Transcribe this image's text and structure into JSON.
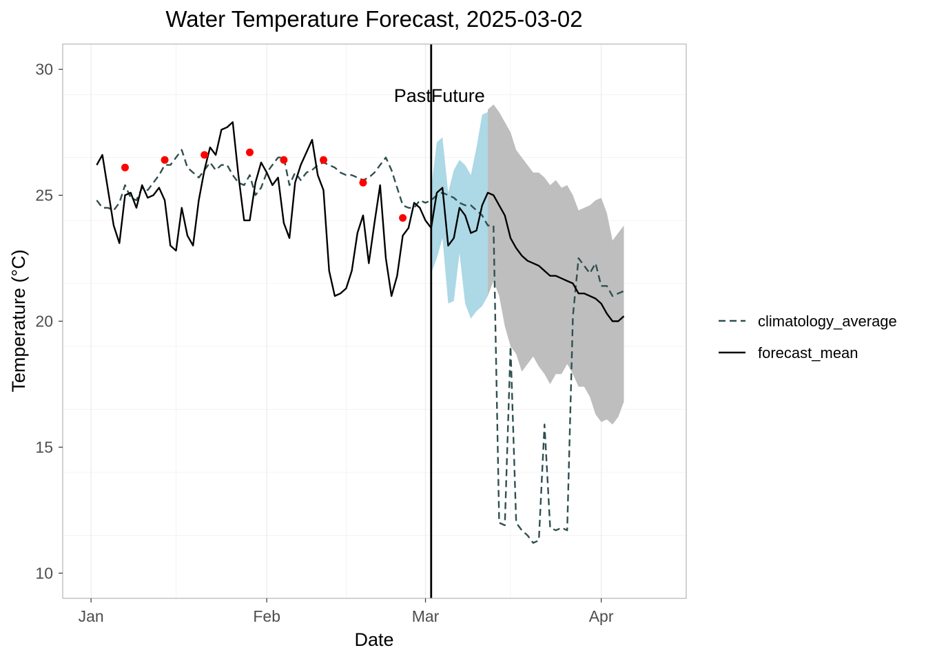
{
  "chart_data": {
    "type": "line",
    "title": "Water Temperature Forecast, 2025-03-02",
    "xlabel": "Date",
    "ylabel": "Temperature (°C)",
    "x_ticks": [
      "Jan",
      "Feb",
      "Mar",
      "Apr"
    ],
    "x_tick_dates": [
      "2025-01-01",
      "2025-02-01",
      "2025-03-01",
      "2025-04-01"
    ],
    "y_ticks": [
      10,
      15,
      20,
      25,
      30
    ],
    "xlim": [
      "2024-12-27",
      "2025-04-16"
    ],
    "ylim": [
      9,
      31
    ],
    "grid": true,
    "legend_position": "right",
    "reference_line": {
      "x": "2025-03-02",
      "labels": [
        "Past",
        "Future"
      ]
    },
    "colors": {
      "forecast_mean": "#000000",
      "climatology_average": "#2f4f4f",
      "observations": "#ff0000",
      "past_band": "#add8e6",
      "future_band": "#bebebe",
      "grid": "#ebebeb",
      "panel_border": "#b3b3b3"
    },
    "series": [
      {
        "name": "forecast_mean",
        "style": "solid",
        "points": [
          [
            "2025-01-02",
            26.2
          ],
          [
            "2025-01-03",
            26.6
          ],
          [
            "2025-01-04",
            25.2
          ],
          [
            "2025-01-05",
            23.8
          ],
          [
            "2025-01-06",
            23.1
          ],
          [
            "2025-01-07",
            25.0
          ],
          [
            "2025-01-08",
            25.1
          ],
          [
            "2025-01-09",
            24.5
          ],
          [
            "2025-01-10",
            25.4
          ],
          [
            "2025-01-11",
            24.9
          ],
          [
            "2025-01-12",
            25.0
          ],
          [
            "2025-01-13",
            25.3
          ],
          [
            "2025-01-14",
            24.8
          ],
          [
            "2025-01-15",
            23.0
          ],
          [
            "2025-01-16",
            22.8
          ],
          [
            "2025-01-17",
            24.5
          ],
          [
            "2025-01-18",
            23.4
          ],
          [
            "2025-01-19",
            23.0
          ],
          [
            "2025-01-20",
            24.8
          ],
          [
            "2025-01-21",
            26.0
          ],
          [
            "2025-01-22",
            26.9
          ],
          [
            "2025-01-23",
            26.6
          ],
          [
            "2025-01-24",
            27.6
          ],
          [
            "2025-01-25",
            27.7
          ],
          [
            "2025-01-26",
            27.9
          ],
          [
            "2025-01-27",
            25.8
          ],
          [
            "2025-01-28",
            24.0
          ],
          [
            "2025-01-29",
            24.0
          ],
          [
            "2025-01-30",
            25.5
          ],
          [
            "2025-01-31",
            26.3
          ],
          [
            "2025-02-01",
            25.9
          ],
          [
            "2025-02-02",
            25.4
          ],
          [
            "2025-02-03",
            25.7
          ],
          [
            "2025-02-04",
            23.9
          ],
          [
            "2025-02-05",
            23.3
          ],
          [
            "2025-02-06",
            25.5
          ],
          [
            "2025-02-07",
            26.2
          ],
          [
            "2025-02-08",
            26.7
          ],
          [
            "2025-02-09",
            27.2
          ],
          [
            "2025-02-10",
            25.8
          ],
          [
            "2025-02-11",
            25.2
          ],
          [
            "2025-02-12",
            22.0
          ],
          [
            "2025-02-13",
            21.0
          ],
          [
            "2025-02-14",
            21.1
          ],
          [
            "2025-02-15",
            21.3
          ],
          [
            "2025-02-16",
            22.0
          ],
          [
            "2025-02-17",
            23.5
          ],
          [
            "2025-02-18",
            24.2
          ],
          [
            "2025-02-19",
            22.3
          ],
          [
            "2025-02-20",
            23.9
          ],
          [
            "2025-02-21",
            25.4
          ],
          [
            "2025-02-22",
            22.5
          ],
          [
            "2025-02-23",
            21.0
          ],
          [
            "2025-02-24",
            21.8
          ],
          [
            "2025-02-25",
            23.4
          ],
          [
            "2025-02-26",
            23.7
          ],
          [
            "2025-02-27",
            24.7
          ],
          [
            "2025-02-28",
            24.5
          ],
          [
            "2025-03-01",
            24.0
          ],
          [
            "2025-03-02",
            23.7
          ],
          [
            "2025-03-03",
            25.1
          ],
          [
            "2025-03-04",
            25.3
          ],
          [
            "2025-03-05",
            23.0
          ],
          [
            "2025-03-06",
            23.3
          ],
          [
            "2025-03-07",
            24.5
          ],
          [
            "2025-03-08",
            24.2
          ],
          [
            "2025-03-09",
            23.5
          ],
          [
            "2025-03-10",
            23.6
          ],
          [
            "2025-03-11",
            24.6
          ],
          [
            "2025-03-12",
            25.1
          ],
          [
            "2025-03-13",
            25.0
          ],
          [
            "2025-03-14",
            24.6
          ],
          [
            "2025-03-15",
            24.2
          ],
          [
            "2025-03-16",
            23.3
          ],
          [
            "2025-03-17",
            22.9
          ],
          [
            "2025-03-18",
            22.6
          ],
          [
            "2025-03-19",
            22.4
          ],
          [
            "2025-03-20",
            22.3
          ],
          [
            "2025-03-21",
            22.2
          ],
          [
            "2025-03-22",
            22.0
          ],
          [
            "2025-03-23",
            21.8
          ],
          [
            "2025-03-24",
            21.8
          ],
          [
            "2025-03-25",
            21.7
          ],
          [
            "2025-03-26",
            21.6
          ],
          [
            "2025-03-27",
            21.5
          ],
          [
            "2025-03-28",
            21.1
          ],
          [
            "2025-03-29",
            21.1
          ],
          [
            "2025-03-30",
            21.0
          ],
          [
            "2025-03-31",
            20.9
          ],
          [
            "2025-04-01",
            20.7
          ],
          [
            "2025-04-02",
            20.3
          ],
          [
            "2025-04-03",
            20.0
          ],
          [
            "2025-04-04",
            20.0
          ],
          [
            "2025-04-05",
            20.2
          ]
        ]
      },
      {
        "name": "climatology_average",
        "style": "dashed",
        "points": [
          [
            "2025-01-02",
            24.8
          ],
          [
            "2025-01-03",
            24.5
          ],
          [
            "2025-01-04",
            24.5
          ],
          [
            "2025-01-05",
            24.4
          ],
          [
            "2025-01-06",
            24.7
          ],
          [
            "2025-01-07",
            25.4
          ],
          [
            "2025-01-08",
            24.9
          ],
          [
            "2025-01-09",
            24.8
          ],
          [
            "2025-01-10",
            25.3
          ],
          [
            "2025-01-11",
            25.2
          ],
          [
            "2025-01-12",
            25.5
          ],
          [
            "2025-01-13",
            25.8
          ],
          [
            "2025-01-14",
            26.2
          ],
          [
            "2025-01-15",
            26.2
          ],
          [
            "2025-01-16",
            26.5
          ],
          [
            "2025-01-17",
            26.8
          ],
          [
            "2025-01-18",
            26.1
          ],
          [
            "2025-01-19",
            25.9
          ],
          [
            "2025-01-20",
            25.7
          ],
          [
            "2025-01-21",
            26.0
          ],
          [
            "2025-01-22",
            26.3
          ],
          [
            "2025-01-23",
            26.0
          ],
          [
            "2025-01-24",
            26.2
          ],
          [
            "2025-01-25",
            26.2
          ],
          [
            "2025-01-26",
            25.8
          ],
          [
            "2025-01-27",
            25.5
          ],
          [
            "2025-01-28",
            25.4
          ],
          [
            "2025-01-29",
            25.8
          ],
          [
            "2025-01-30",
            25.0
          ],
          [
            "2025-01-31",
            25.3
          ],
          [
            "2025-02-01",
            25.9
          ],
          [
            "2025-02-02",
            26.2
          ],
          [
            "2025-02-03",
            26.5
          ],
          [
            "2025-02-04",
            26.5
          ],
          [
            "2025-02-05",
            25.4
          ],
          [
            "2025-02-06",
            25.9
          ],
          [
            "2025-02-07",
            25.6
          ],
          [
            "2025-02-08",
            25.9
          ],
          [
            "2025-02-09",
            26.0
          ],
          [
            "2025-02-10",
            26.2
          ],
          [
            "2025-02-11",
            26.3
          ],
          [
            "2025-02-12",
            26.2
          ],
          [
            "2025-02-13",
            26.1
          ],
          [
            "2025-02-14",
            25.9
          ],
          [
            "2025-02-15",
            25.8
          ],
          [
            "2025-02-16",
            25.8
          ],
          [
            "2025-02-17",
            25.7
          ],
          [
            "2025-02-18",
            25.6
          ],
          [
            "2025-02-19",
            25.7
          ],
          [
            "2025-02-20",
            25.9
          ],
          [
            "2025-02-21",
            26.2
          ],
          [
            "2025-02-22",
            26.5
          ],
          [
            "2025-02-23",
            26.0
          ],
          [
            "2025-02-24",
            25.3
          ],
          [
            "2025-02-25",
            24.6
          ],
          [
            "2025-02-26",
            24.5
          ],
          [
            "2025-02-27",
            24.5
          ],
          [
            "2025-02-28",
            24.8
          ],
          [
            "2025-03-01",
            24.7
          ],
          [
            "2025-03-02",
            24.8
          ],
          [
            "2025-03-03",
            25.0
          ],
          [
            "2025-03-04",
            25.1
          ],
          [
            "2025-03-05",
            25.0
          ],
          [
            "2025-03-06",
            24.9
          ],
          [
            "2025-03-07",
            24.7
          ],
          [
            "2025-03-08",
            24.6
          ],
          [
            "2025-03-09",
            24.6
          ],
          [
            "2025-03-10",
            24.4
          ],
          [
            "2025-03-11",
            24.2
          ],
          [
            "2025-03-12",
            23.8
          ],
          [
            "2025-03-13",
            23.8
          ],
          [
            "2025-03-14",
            12.0
          ],
          [
            "2025-03-15",
            11.9
          ],
          [
            "2025-03-16",
            19.0
          ],
          [
            "2025-03-17",
            12.0
          ],
          [
            "2025-03-18",
            11.7
          ],
          [
            "2025-03-19",
            11.5
          ],
          [
            "2025-03-20",
            11.2
          ],
          [
            "2025-03-21",
            11.3
          ],
          [
            "2025-03-22",
            15.9
          ],
          [
            "2025-03-23",
            11.8
          ],
          [
            "2025-03-24",
            11.7
          ],
          [
            "2025-03-25",
            11.8
          ],
          [
            "2025-03-26",
            11.7
          ],
          [
            "2025-03-27",
            20.2
          ],
          [
            "2025-03-28",
            22.5
          ],
          [
            "2025-03-29",
            22.2
          ],
          [
            "2025-03-30",
            21.9
          ],
          [
            "2025-03-31",
            22.3
          ],
          [
            "2025-04-01",
            21.4
          ],
          [
            "2025-04-02",
            21.4
          ],
          [
            "2025-04-03",
            21.0
          ],
          [
            "2025-04-04",
            21.1
          ],
          [
            "2025-04-05",
            21.2
          ]
        ]
      }
    ],
    "observations": [
      [
        "2025-01-07",
        26.1
      ],
      [
        "2025-01-14",
        26.4
      ],
      [
        "2025-01-21",
        26.6
      ],
      [
        "2025-01-29",
        26.7
      ],
      [
        "2025-02-04",
        26.4
      ],
      [
        "2025-02-11",
        26.4
      ],
      [
        "2025-02-18",
        25.5
      ],
      [
        "2025-02-25",
        24.1
      ]
    ],
    "bands": [
      {
        "label": "past",
        "x": [
          "2025-03-02",
          "2025-03-03",
          "2025-03-04",
          "2025-03-05",
          "2025-03-06",
          "2025-03-07",
          "2025-03-08",
          "2025-03-09",
          "2025-03-10",
          "2025-03-11",
          "2025-03-12"
        ],
        "lower": [
          21.9,
          22.5,
          23.3,
          20.7,
          20.8,
          22.7,
          20.7,
          20.1,
          20.4,
          20.6,
          21.0
        ],
        "upper": [
          25.3,
          27.1,
          27.3,
          25.1,
          26.0,
          26.4,
          26.2,
          25.8,
          26.9,
          28.2,
          28.3
        ]
      },
      {
        "label": "future",
        "x": [
          "2025-03-12",
          "2025-03-13",
          "2025-03-14",
          "2025-03-15",
          "2025-03-16",
          "2025-03-17",
          "2025-03-18",
          "2025-03-19",
          "2025-03-20",
          "2025-03-21",
          "2025-03-22",
          "2025-03-23",
          "2025-03-24",
          "2025-03-25",
          "2025-03-26",
          "2025-03-27",
          "2025-03-28",
          "2025-03-29",
          "2025-03-30",
          "2025-03-31",
          "2025-04-01",
          "2025-04-02",
          "2025-04-03",
          "2025-04-04",
          "2025-04-05"
        ],
        "lower": [
          21.0,
          21.6,
          21.0,
          19.8,
          19.0,
          18.7,
          18.0,
          18.3,
          18.6,
          18.2,
          17.9,
          17.5,
          17.9,
          17.9,
          18.3,
          17.9,
          17.4,
          17.4,
          17.0,
          16.3,
          16.0,
          16.1,
          15.9,
          16.2,
          16.8
        ],
        "upper": [
          28.4,
          28.6,
          28.3,
          27.9,
          27.5,
          26.8,
          26.5,
          26.2,
          25.9,
          25.9,
          25.7,
          25.4,
          25.6,
          25.3,
          25.4,
          25.0,
          24.4,
          24.5,
          24.6,
          24.8,
          24.9,
          24.3,
          23.2,
          23.5,
          23.8
        ]
      }
    ],
    "legend": [
      {
        "label": "climatology_average",
        "style": "dashed"
      },
      {
        "label": "forecast_mean",
        "style": "solid"
      }
    ]
  }
}
